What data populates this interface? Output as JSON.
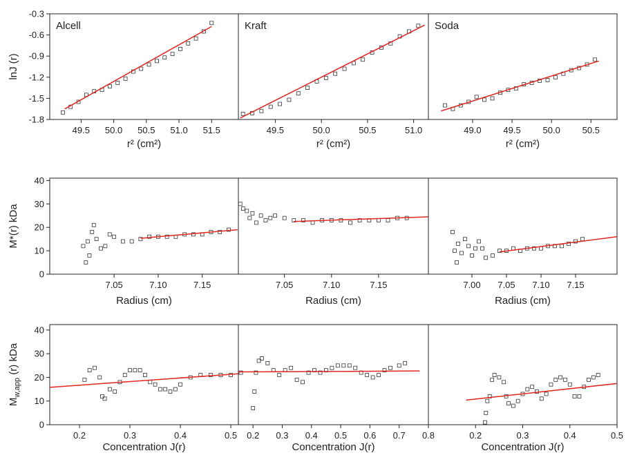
{
  "chart_data": [
    {
      "type": "scatter",
      "title": "Alcell",
      "xlabel": "r² (cm²)",
      "ylabel": "lnJ (r)",
      "xlim": [
        49.02,
        51.91
      ],
      "ylim": [
        -1.8,
        -0.3
      ],
      "xticks": [
        49.5,
        {
          "value": 50,
          "label": "50.0"
        },
        50.5,
        {
          "value": 51,
          "label": "51.0"
        },
        51.5
      ],
      "yticks": [
        -0.3,
        -0.6,
        -0.9,
        -1.2,
        -1.5,
        -1.8
      ],
      "series": [
        {
          "color": "#333333",
          "x": [
            49.22,
            49.34,
            49.46,
            49.58,
            49.7,
            49.82,
            49.94,
            50.06,
            50.18,
            50.3,
            50.42,
            50.54,
            50.66,
            50.78,
            50.9,
            51.02,
            51.14,
            51.26,
            51.38,
            51.5
          ],
          "values": [
            -1.7,
            -1.62,
            -1.55,
            -1.45,
            -1.4,
            -1.38,
            -1.33,
            -1.28,
            -1.22,
            -1.12,
            -1.08,
            -1.02,
            -0.97,
            -0.92,
            -0.87,
            -0.8,
            -0.72,
            -0.65,
            -0.55,
            -0.43
          ]
        },
        {
          "type": "line",
          "color": "#e0261f",
          "x": [
            49.25,
            51.5
          ],
          "values": [
            -1.65,
            -0.48
          ]
        }
      ]
    },
    {
      "type": "scatter",
      "title": "Kraft",
      "xlabel": "r² (cm²)",
      "xlim": [
        49.1,
        51.16
      ],
      "ylim": [
        -1.8,
        -0.3
      ],
      "xticks": [
        49.5,
        {
          "value": 50,
          "label": "50.0"
        },
        50.5,
        {
          "value": 51,
          "label": "51.0"
        }
      ],
      "series": [
        {
          "color": "#333333",
          "x": [
            49.15,
            49.25,
            49.35,
            49.45,
            49.55,
            49.65,
            49.75,
            49.85,
            49.95,
            50.05,
            50.15,
            50.25,
            50.35,
            50.45,
            50.55,
            50.65,
            50.75,
            50.85,
            50.95,
            51.05
          ],
          "values": [
            -1.72,
            -1.71,
            -1.68,
            -1.62,
            -1.58,
            -1.52,
            -1.43,
            -1.35,
            -1.26,
            -1.21,
            -1.15,
            -1.08,
            -1.0,
            -0.95,
            -0.85,
            -0.78,
            -0.72,
            -0.62,
            -0.55,
            -0.47
          ]
        },
        {
          "type": "line",
          "color": "#e0261f",
          "x": [
            49.12,
            51.12
          ],
          "values": [
            -1.78,
            -0.46
          ]
        }
      ]
    },
    {
      "type": "scatter",
      "title": "Soda",
      "xlabel": "r² (cm²)",
      "xlim": [
        48.44,
        50.83
      ],
      "ylim": [
        -1.8,
        -0.3
      ],
      "xticks": [
        {
          "value": 49,
          "label": "49.0"
        },
        49.5,
        {
          "value": 50,
          "label": "50.0"
        },
        50.5
      ],
      "series": [
        {
          "color": "#333333",
          "x": [
            48.65,
            48.75,
            48.85,
            48.95,
            49.05,
            49.15,
            49.25,
            49.35,
            49.45,
            49.55,
            49.65,
            49.75,
            49.85,
            49.95,
            50.05,
            50.15,
            50.25,
            50.35,
            50.45,
            50.55
          ],
          "values": [
            -1.6,
            -1.65,
            -1.6,
            -1.55,
            -1.48,
            -1.52,
            -1.5,
            -1.42,
            -1.38,
            -1.36,
            -1.3,
            -1.28,
            -1.25,
            -1.24,
            -1.2,
            -1.15,
            -1.1,
            -1.07,
            -1.02,
            -0.95
          ]
        },
        {
          "type": "line",
          "color": "#e0261f",
          "x": [
            48.6,
            50.6
          ],
          "values": [
            -1.68,
            -0.97
          ]
        }
      ]
    },
    {
      "type": "scatter",
      "xlabel": "Radius (cm)",
      "ylabel": "M*(r) kDa",
      "xlim": [
        6.977,
        7.191
      ],
      "ylim": [
        0,
        41
      ],
      "xticks": [
        7.05,
        {
          "value": 7.1,
          "label": "7.10"
        },
        7.15
      ],
      "yticks": [
        0,
        10,
        20,
        30,
        40
      ],
      "series": [
        {
          "color": "#333333",
          "x": [
            7.015,
            7.018,
            7.02,
            7.022,
            7.025,
            7.027,
            7.03,
            7.035,
            7.04,
            7.045,
            7.05,
            7.06,
            7.07,
            7.08,
            7.09,
            7.1,
            7.11,
            7.12,
            7.13,
            7.14,
            7.15,
            7.16,
            7.17,
            7.18
          ],
          "values": [
            12,
            5,
            14,
            8,
            18,
            21,
            15,
            11,
            12,
            17,
            16,
            14,
            14,
            15,
            16,
            16,
            16,
            16,
            17,
            17,
            17,
            18,
            18,
            19
          ]
        },
        {
          "type": "line",
          "color": "#e0261f",
          "x": [
            7.08,
            7.19
          ],
          "values": [
            15.3,
            19
          ]
        }
      ]
    },
    {
      "type": "scatter",
      "xlabel": "Radius (cm)",
      "xlim": [
        7.001,
        7.203
      ],
      "ylim": [
        0,
        41
      ],
      "xticks": [
        7.05,
        {
          "value": 7.1,
          "label": "7.10"
        },
        7.15
      ],
      "series": [
        {
          "color": "#333333",
          "x": [
            7.003,
            7.006,
            7.01,
            7.013,
            7.016,
            7.02,
            7.025,
            7.03,
            7.035,
            7.04,
            7.05,
            7.06,
            7.07,
            7.08,
            7.09,
            7.1,
            7.11,
            7.12,
            7.13,
            7.14,
            7.15,
            7.16,
            7.17,
            7.18
          ],
          "values": [
            30,
            28,
            27,
            24,
            26,
            22,
            25,
            23,
            24,
            25,
            24,
            23,
            23,
            22,
            23,
            23,
            23,
            22,
            23,
            23,
            23,
            23,
            24,
            24
          ]
        },
        {
          "type": "line",
          "color": "#e0261f",
          "x": [
            7.06,
            7.203
          ],
          "values": [
            22.5,
            24.5
          ]
        }
      ]
    },
    {
      "type": "scatter",
      "xlabel": "Radius (cm)",
      "xlim": [
        6.937,
        7.21
      ],
      "ylim": [
        0,
        41
      ],
      "xticks": [
        {
          "value": 7,
          "label": "7.00"
        },
        7.05,
        {
          "value": 7.1,
          "label": "7.10"
        },
        7.15
      ],
      "series": [
        {
          "color": "#333333",
          "x": [
            6.972,
            6.975,
            6.978,
            6.98,
            6.985,
            6.99,
            6.995,
            7.0,
            7.005,
            7.01,
            7.015,
            7.02,
            7.03,
            7.04,
            7.05,
            7.06,
            7.07,
            7.08,
            7.09,
            7.1,
            7.11,
            7.12,
            7.13,
            7.14,
            7.15,
            7.16
          ],
          "values": [
            18,
            10,
            5,
            13,
            9,
            15,
            12,
            8,
            11,
            14,
            11,
            7,
            8,
            10,
            10,
            11,
            10,
            11,
            11,
            11,
            12,
            12,
            12,
            13,
            14,
            15
          ]
        },
        {
          "type": "line",
          "color": "#e0261f",
          "x": [
            7.04,
            7.21
          ],
          "values": [
            9.5,
            16
          ]
        }
      ]
    },
    {
      "type": "scatter",
      "xlabel": "Concentration J(r)",
      "ylabel": [
        "M",
        "w,app",
        " (r) kDa"
      ],
      "xlim": [
        0.141,
        0.515
      ],
      "ylim": [
        0,
        42.3
      ],
      "xticks": [
        0.2,
        0.3,
        0.4,
        0.5
      ],
      "yticks": [
        0,
        10,
        20,
        30,
        40
      ],
      "series": [
        {
          "color": "#333333",
          "x": [
            0.21,
            0.22,
            0.23,
            0.24,
            0.245,
            0.25,
            0.26,
            0.27,
            0.28,
            0.29,
            0.3,
            0.31,
            0.32,
            0.33,
            0.34,
            0.35,
            0.36,
            0.37,
            0.38,
            0.39,
            0.4,
            0.42,
            0.44,
            0.46,
            0.48,
            0.5,
            0.52
          ],
          "values": [
            19,
            23,
            24,
            20,
            12,
            11,
            15,
            14,
            18,
            21,
            23,
            23,
            23,
            21,
            18,
            17,
            15,
            15,
            14,
            15,
            17,
            20,
            21,
            21,
            21,
            21,
            22
          ]
        },
        {
          "type": "line",
          "color": "#e0261f",
          "x": [
            0.141,
            0.515
          ],
          "values": [
            15.8,
            21.5
          ]
        }
      ]
    },
    {
      "type": "scatter",
      "xlabel": "Concentration J(r)",
      "xlim": [
        0.15,
        0.8
      ],
      "ylim": [
        0,
        42.3
      ],
      "xticks": [
        0.2,
        0.3,
        0.4,
        0.5,
        0.6,
        0.7,
        0.8
      ],
      "series": [
        {
          "color": "#333333",
          "x": [
            0.2,
            0.205,
            0.21,
            0.22,
            0.23,
            0.25,
            0.27,
            0.29,
            0.31,
            0.33,
            0.35,
            0.37,
            0.39,
            0.41,
            0.43,
            0.45,
            0.47,
            0.49,
            0.51,
            0.53,
            0.55,
            0.57,
            0.59,
            0.61,
            0.63,
            0.65,
            0.67,
            0.7,
            0.72
          ],
          "values": [
            7,
            14,
            22,
            27,
            28,
            26,
            23,
            21,
            23,
            24,
            19,
            18,
            22,
            23,
            22,
            23,
            24,
            25,
            25,
            25,
            24,
            22,
            21,
            20,
            21,
            23,
            24,
            25,
            26
          ]
        },
        {
          "type": "line",
          "color": "#e0261f",
          "x": [
            0.15,
            0.77
          ],
          "values": [
            22.3,
            22.7
          ]
        }
      ]
    },
    {
      "type": "scatter",
      "xlabel": "Concentration J(r)",
      "xlim": [
        0.1,
        0.5
      ],
      "ylim": [
        0,
        42.3
      ],
      "xticks": [
        0.2,
        0.3,
        0.4,
        0.5
      ],
      "series": [
        {
          "color": "#333333",
          "x": [
            0.22,
            0.222,
            0.225,
            0.23,
            0.235,
            0.24,
            0.25,
            0.26,
            0.265,
            0.27,
            0.28,
            0.29,
            0.3,
            0.31,
            0.32,
            0.33,
            0.34,
            0.35,
            0.36,
            0.37,
            0.38,
            0.39,
            0.4,
            0.41,
            0.42,
            0.43,
            0.44,
            0.45,
            0.46
          ],
          "values": [
            1,
            5,
            10,
            12,
            19,
            21,
            20,
            18,
            12,
            9,
            8,
            10,
            13,
            15,
            16,
            14,
            11,
            13,
            17,
            19,
            20,
            19,
            17,
            12,
            12,
            16,
            19,
            20,
            21
          ]
        },
        {
          "type": "line",
          "color": "#e0261f",
          "x": [
            0.18,
            0.5
          ],
          "values": [
            10.4,
            17.4
          ]
        }
      ]
    }
  ]
}
